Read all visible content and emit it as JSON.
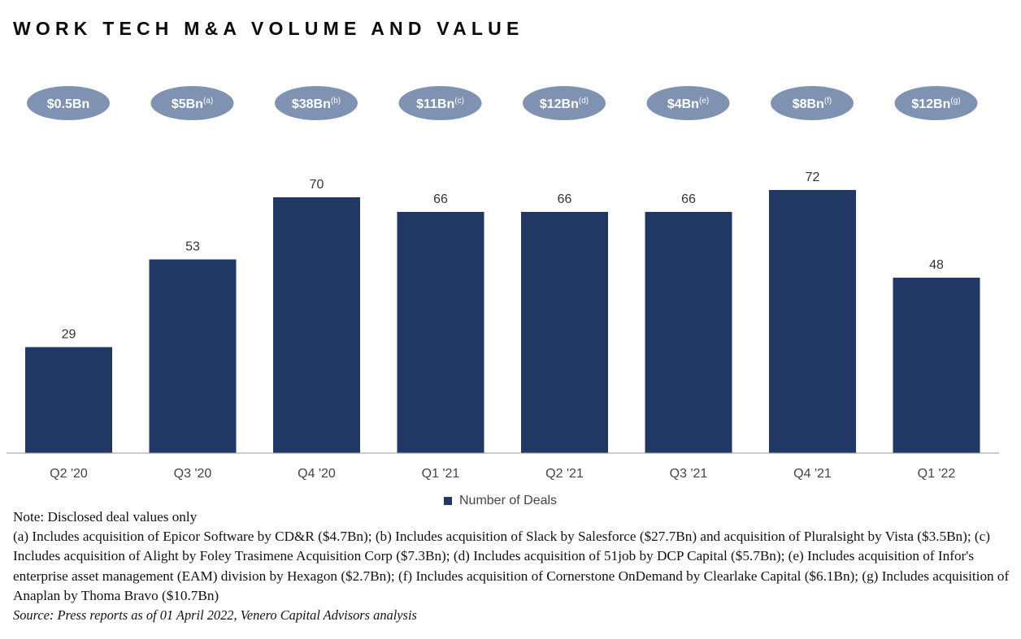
{
  "title": "WORK TECH M&A VOLUME AND VALUE",
  "colors": {
    "bar": "#213764",
    "pill": "#7f92b1",
    "axis": "#9a9a9a"
  },
  "chart_data": {
    "type": "bar",
    "categories": [
      "Q2 '20",
      "Q3 '20",
      "Q4 '20",
      "Q1 '21",
      "Q2 '21",
      "Q3 '21",
      "Q4 '21",
      "Q1 '22"
    ],
    "series": [
      {
        "name": "Number of Deals",
        "values": [
          29,
          53,
          70,
          66,
          66,
          66,
          72,
          48
        ]
      }
    ],
    "deal_values": [
      {
        "text": "$0.5Bn",
        "note": ""
      },
      {
        "text": "$5Bn",
        "note": "(a)"
      },
      {
        "text": "$38Bn",
        "note": "(b)"
      },
      {
        "text": "$11Bn",
        "note": "(c)"
      },
      {
        "text": "$12Bn",
        "note": "(d)"
      },
      {
        "text": "$4Bn",
        "note": "(e)"
      },
      {
        "text": "$8Bn",
        "note": "(f)"
      },
      {
        "text": "$12Bn",
        "note": "(g)"
      }
    ],
    "ylim": [
      0,
      72
    ],
    "grid": false,
    "legend_position": "bottom-center"
  },
  "legend": {
    "label": "Number of Deals"
  },
  "notes": {
    "disclosed": "Note: Disclosed deal values only",
    "footnotes": "(a) Includes acquisition of Epicor Software by CD&R ($4.7Bn); (b) Includes acquisition of Slack by Salesforce ($27.7Bn) and acquisition of Pluralsight by Vista ($3.5Bn); (c) Includes acquisition of Alight by Foley Trasimene Acquisition Corp ($7.3Bn); (d) Includes acquisition of 51job by DCP Capital ($5.7Bn); (e) Includes acquisition of Infor's enterprise asset management (EAM) division by Hexagon ($2.7Bn); (f) Includes acquisition of Cornerstone OnDemand by Clearlake Capital ($6.1Bn); (g) Includes acquisition of Anaplan by Thoma Bravo ($10.7Bn)",
    "source": "Source: Press reports as of 01 April 2022, Venero Capital Advisors analysis"
  }
}
